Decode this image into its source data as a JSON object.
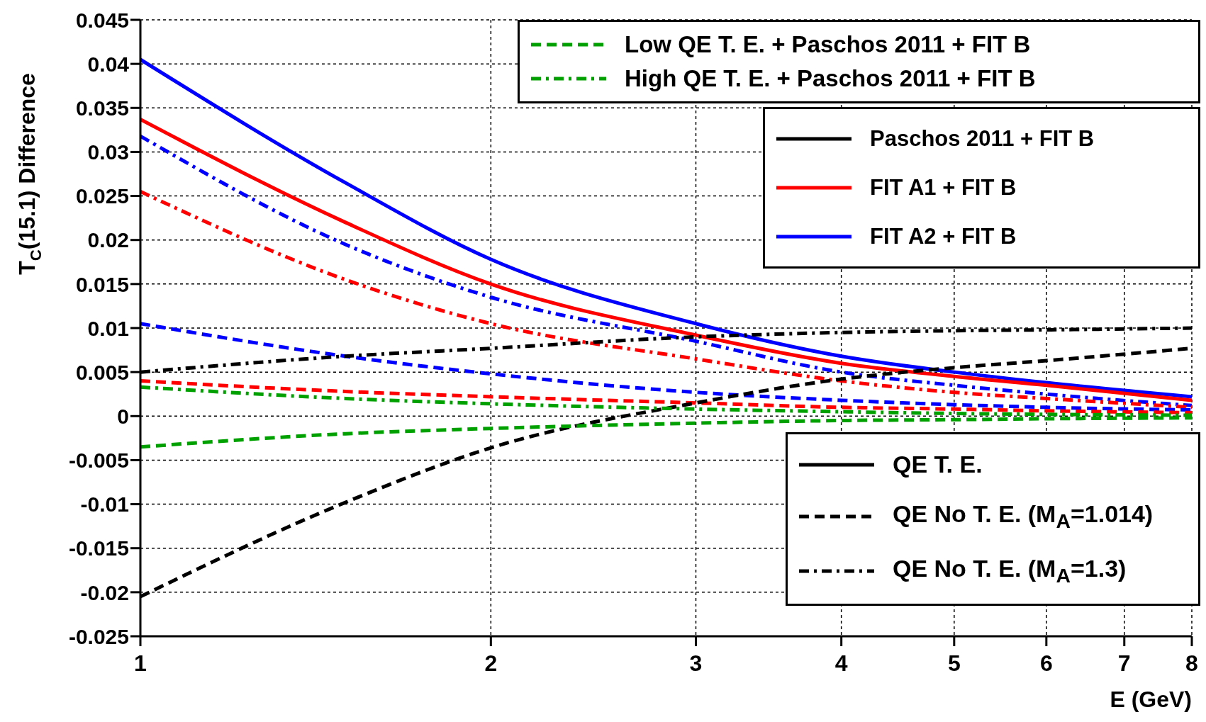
{
  "chart_data": {
    "type": "line",
    "ylabel": "T$_{C}$(15.1) Difference",
    "xlabel": "E (GeV)",
    "x": [
      1,
      1.5,
      2,
      3,
      4,
      5,
      6,
      8
    ],
    "series": [
      {
        "color": "#0000ff",
        "line_style": "solid",
        "values": [
          0.0405,
          0.0265,
          0.0178,
          0.0105,
          0.0068,
          0.005,
          0.0038,
          0.0022
        ]
      },
      {
        "color": "#ff0000",
        "line_style": "solid",
        "values": [
          0.0337,
          0.022,
          0.015,
          0.0092,
          0.006,
          0.0045,
          0.0035,
          0.0018
        ]
      },
      {
        "color": "#0000ff",
        "line_style": "dashdot",
        "values": [
          0.0318,
          0.0195,
          0.0135,
          0.0085,
          0.005,
          0.0035,
          0.0025,
          0.0012
        ]
      },
      {
        "color": "#ff0000",
        "line_style": "dashdot",
        "values": [
          0.0255,
          0.0155,
          0.0105,
          0.0065,
          0.004,
          0.0027,
          0.002,
          0.001
        ]
      },
      {
        "color": "#0000ff",
        "line_style": "dashed",
        "values": [
          0.0105,
          0.0068,
          0.0048,
          0.0027,
          0.0018,
          0.0013,
          0.001,
          0.0007
        ]
      },
      {
        "color": "#ff0000",
        "line_style": "dashed",
        "values": [
          0.004,
          0.0028,
          0.0022,
          0.0015,
          0.001,
          0.0008,
          0.0006,
          0.0004
        ]
      },
      {
        "color": "#000000",
        "line_style": "dashed",
        "values": [
          -0.0205,
          -0.0098,
          -0.0036,
          0.0015,
          0.0042,
          0.0055,
          0.0063,
          0.0077
        ]
      },
      {
        "color": "#000000",
        "line_style": "dashdot",
        "values": [
          0.005,
          0.0068,
          0.0077,
          0.009,
          0.0095,
          0.0097,
          0.0098,
          0.01
        ]
      },
      {
        "color": "#00a000",
        "line_style": "dashed",
        "values": [
          -0.0035,
          -0.002,
          -0.0014,
          -0.0008,
          -0.0005,
          -0.0004,
          -0.0003,
          -0.0002
        ]
      },
      {
        "color": "#00a000",
        "line_style": "dashdot",
        "values": [
          0.0033,
          0.002,
          0.0014,
          0.0008,
          0.0005,
          0.0003,
          0.0002,
          0.0001
        ]
      }
    ],
    "xlim": [
      1,
      8
    ],
    "xticks": [
      1,
      2,
      3,
      4,
      5,
      6,
      7,
      8
    ],
    "log": "x",
    "ylim": [
      -0.025,
      0.045
    ],
    "yticks": [
      -0.025,
      -0.02,
      -0.015,
      -0.01,
      -0.005,
      0,
      0.005,
      0.01,
      0.015,
      0.02,
      0.025,
      0.03,
      0.035,
      0.04,
      0.045
    ],
    "grid": true,
    "annotations": [
      "Low QE T. E. + Paschos 2011 + FIT B",
      "High QE T. E. + Paschos 2011 + FIT B",
      "Paschos 2011 + FIT B",
      "FIT A1 + FIT B",
      "FIT A2 + FIT B",
      "QE T. E.",
      "QE No T. E. (M$_{A}$=1.014)",
      "QE No T. E. (M$_{A}$=1.3)"
    ]
  }
}
